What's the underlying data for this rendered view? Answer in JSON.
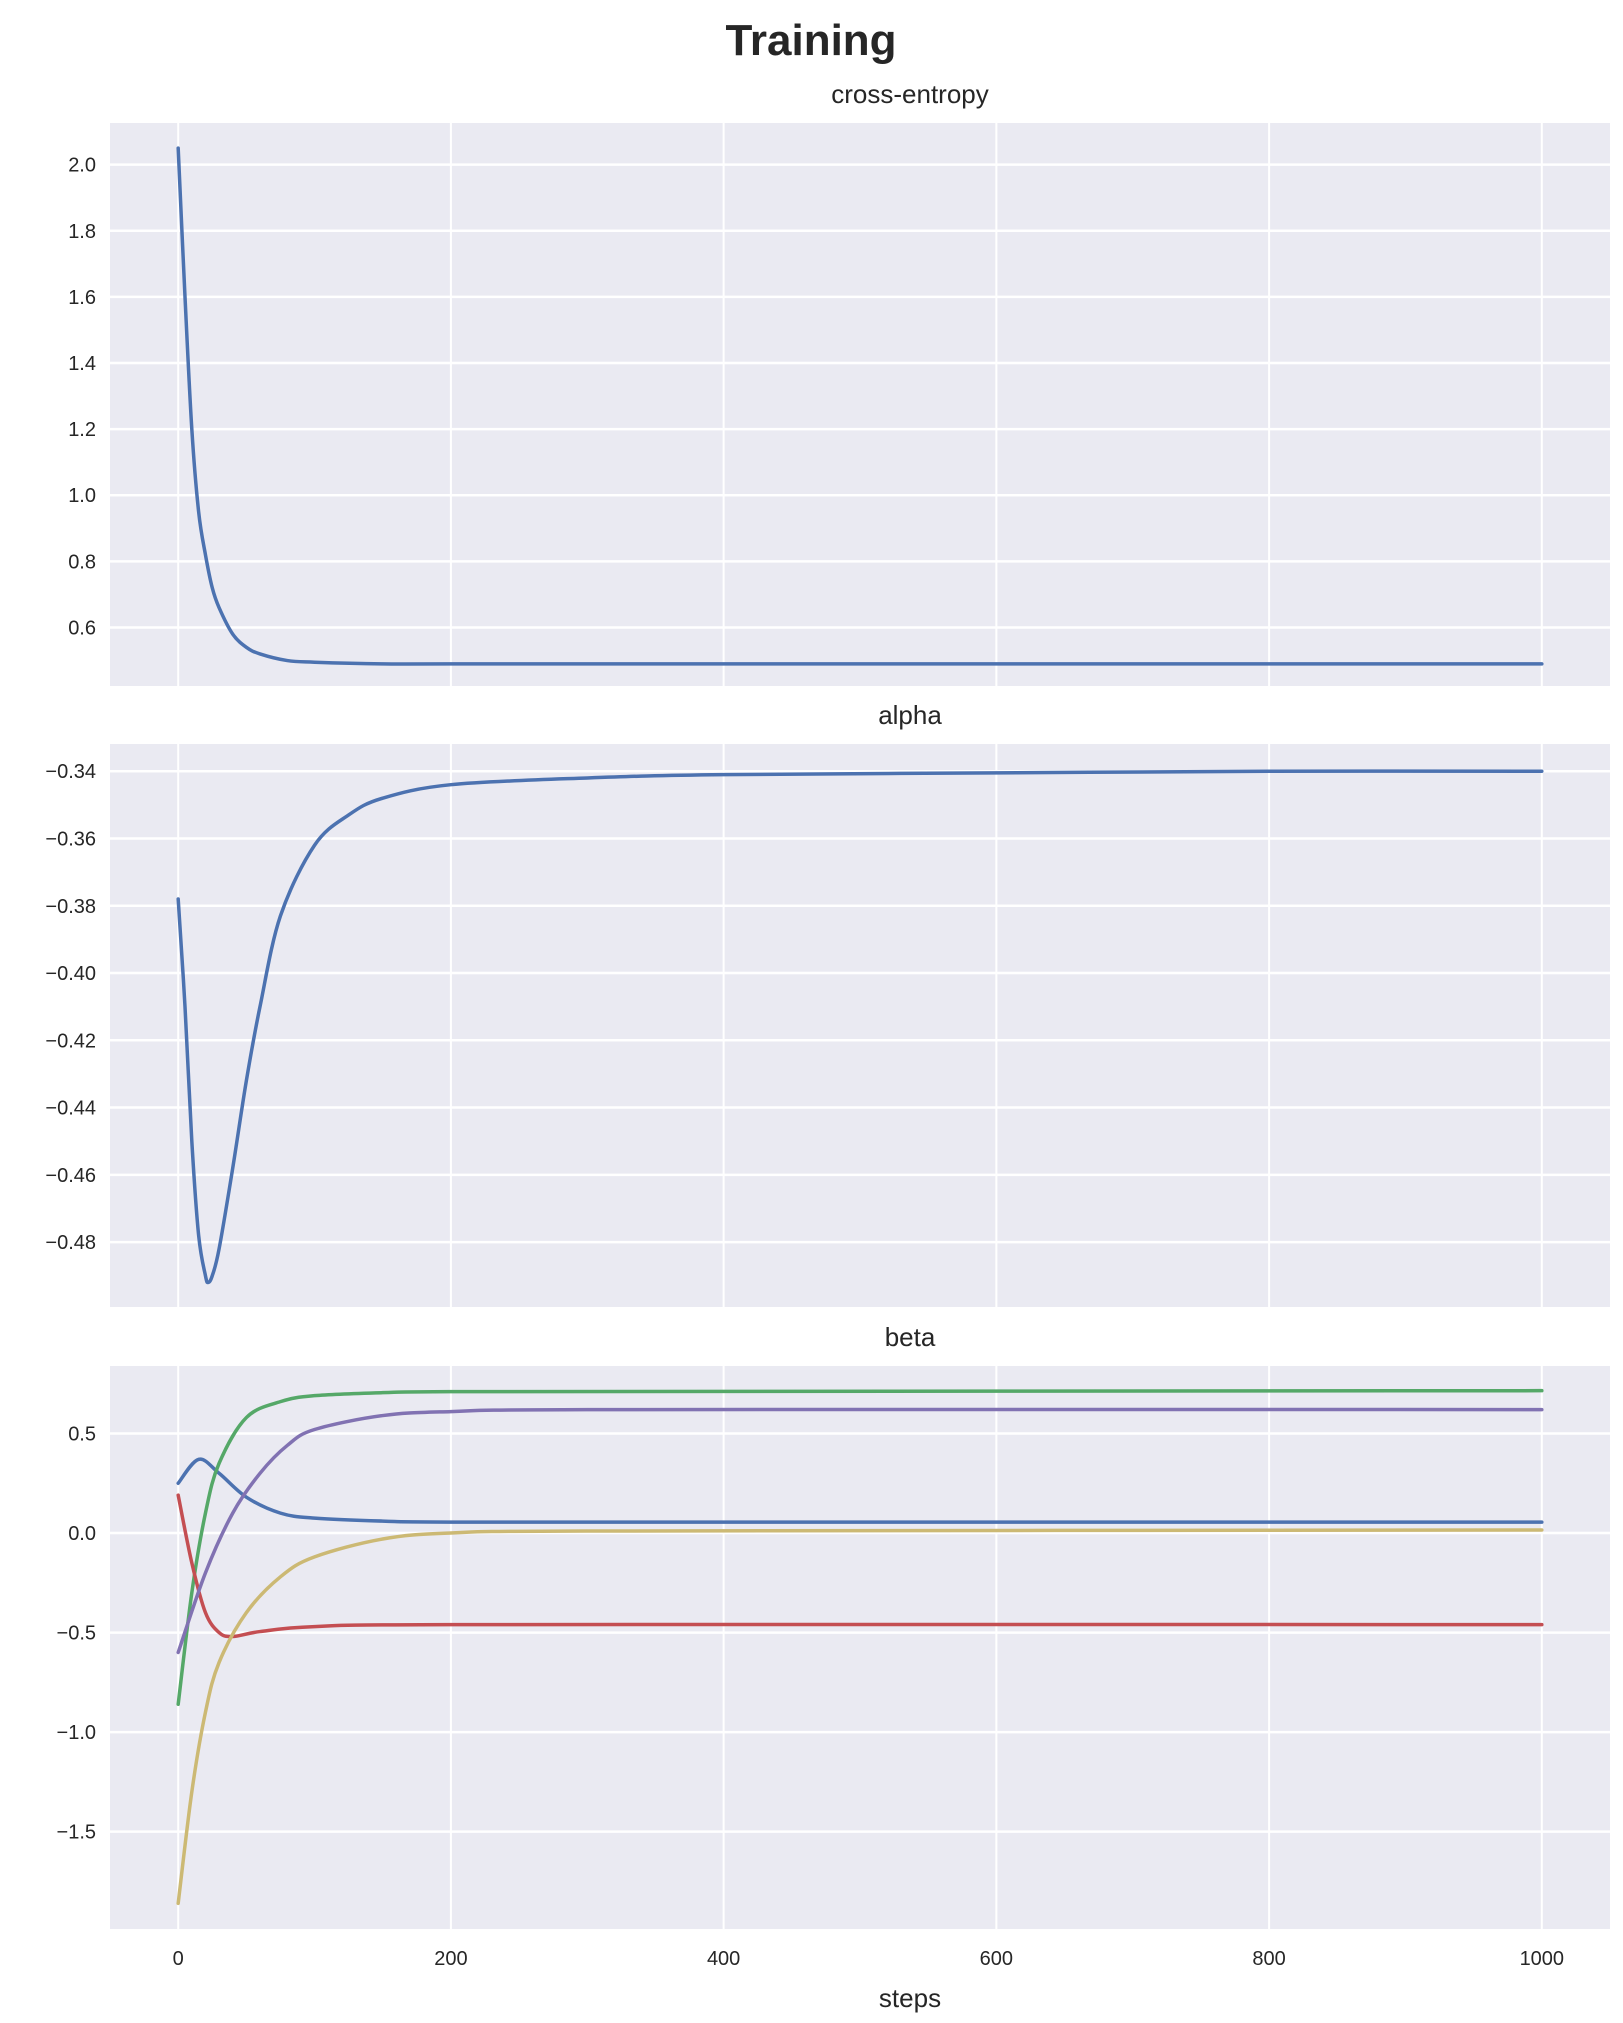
{
  "title": "Training",
  "colors": {
    "background": "#eaeaf2",
    "grid": "#ffffff",
    "blue": "#4c72b0",
    "green": "#55a868",
    "red": "#c44e52",
    "purple": "#8172b2",
    "yellow": "#ccb974"
  },
  "chart_data": [
    {
      "type": "line",
      "title": "cross-entropy",
      "xlabel": "",
      "xlim": [
        -50,
        1050
      ],
      "ylim": [
        0.423,
        2.126
      ],
      "xticks": [
        0,
        200,
        400,
        600,
        800,
        1000
      ],
      "yticks": [
        "0.6",
        "0.8",
        "1.0",
        "1.2",
        "1.4",
        "1.6",
        "1.8",
        "2.0"
      ],
      "grid": true,
      "series": [
        {
          "color": "#4c72b0",
          "x": [
            0,
            5,
            10,
            15,
            20,
            25,
            30,
            40,
            50,
            60,
            80,
            100,
            150,
            200,
            400,
            600,
            800,
            1000
          ],
          "y": [
            2.05,
            1.6,
            1.2,
            0.95,
            0.82,
            0.72,
            0.66,
            0.58,
            0.54,
            0.52,
            0.5,
            0.495,
            0.49,
            0.49,
            0.49,
            0.49,
            0.49,
            0.49
          ]
        }
      ]
    },
    {
      "type": "line",
      "title": "alpha",
      "xlabel": "",
      "xlim": [
        -50,
        1050
      ],
      "ylim": [
        -0.4993,
        -0.3319
      ],
      "xticks": [
        0,
        200,
        400,
        600,
        800,
        1000
      ],
      "yticks": [
        "−0.48",
        "−0.46",
        "−0.44",
        "−0.42",
        "−0.40",
        "−0.38",
        "−0.36",
        "−0.34"
      ],
      "grid": true,
      "series": [
        {
          "color": "#4c72b0",
          "x": [
            0,
            5,
            10,
            15,
            20,
            22,
            25,
            30,
            40,
            50,
            60,
            75,
            100,
            125,
            150,
            200,
            300,
            400,
            600,
            800,
            1000
          ],
          "y": [
            -0.378,
            -0.41,
            -0.45,
            -0.478,
            -0.49,
            -0.492,
            -0.49,
            -0.482,
            -0.458,
            -0.432,
            -0.41,
            -0.383,
            -0.362,
            -0.353,
            -0.348,
            -0.344,
            -0.342,
            -0.341,
            -0.3405,
            -0.34,
            -0.34
          ]
        }
      ]
    },
    {
      "type": "line",
      "title": "beta",
      "xlabel": "steps",
      "xlim": [
        -50,
        1050
      ],
      "ylim": [
        -1.989,
        0.839
      ],
      "xticks": [
        0,
        200,
        400,
        600,
        800,
        1000
      ],
      "yticks": [
        "−1.5",
        "−1.0",
        "−0.5",
        "0.0",
        "0.5"
      ],
      "grid": true,
      "series": [
        {
          "color": "#4c72b0",
          "x": [
            0,
            15,
            30,
            50,
            75,
            100,
            150,
            200,
            1000
          ],
          "y": [
            0.25,
            0.37,
            0.3,
            0.18,
            0.1,
            0.075,
            0.06,
            0.055,
            0.055
          ]
        },
        {
          "color": "#55a868",
          "x": [
            0,
            10,
            20,
            30,
            50,
            75,
            100,
            150,
            200,
            1000
          ],
          "y": [
            -0.86,
            -0.3,
            0.1,
            0.35,
            0.58,
            0.66,
            0.69,
            0.705,
            0.71,
            0.715
          ]
        },
        {
          "color": "#c44e52",
          "x": [
            0,
            10,
            20,
            30,
            40,
            60,
            100,
            200,
            1000
          ],
          "y": [
            0.19,
            -0.15,
            -0.4,
            -0.5,
            -0.52,
            -0.495,
            -0.47,
            -0.46,
            -0.46
          ]
        },
        {
          "color": "#8172b2",
          "x": [
            0,
            20,
            40,
            60,
            80,
            100,
            150,
            200,
            300,
            1000
          ],
          "y": [
            -0.6,
            -0.2,
            0.1,
            0.3,
            0.44,
            0.52,
            0.59,
            0.61,
            0.62,
            0.62
          ]
        },
        {
          "color": "#ccb974",
          "x": [
            0,
            10,
            20,
            30,
            50,
            75,
            100,
            150,
            200,
            300,
            1000
          ],
          "y": [
            -1.86,
            -1.3,
            -0.9,
            -0.65,
            -0.4,
            -0.22,
            -0.12,
            -0.03,
            0.0,
            0.01,
            0.015
          ]
        }
      ]
    }
  ]
}
